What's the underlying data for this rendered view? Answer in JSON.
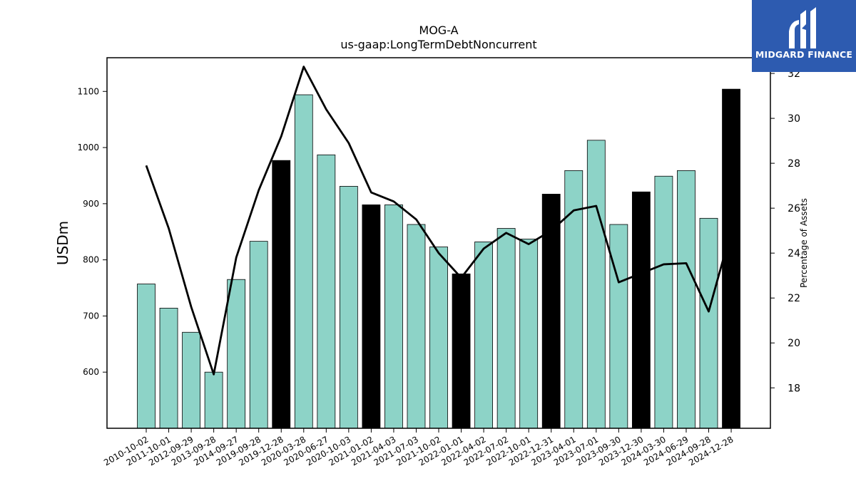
{
  "logo": {
    "text": "MIDGARD FINANCE"
  },
  "chart_data": {
    "type": "bar",
    "title": "MOG-A",
    "subtitle": "us-gaap:LongTermDebtNoncurrent",
    "ylabel": "USDm",
    "ylabel_right": "Percentage of Assets",
    "ylim": [
      500,
      1160
    ],
    "ylim_right": [
      16.2,
      32.7
    ],
    "yticks": [
      600,
      700,
      800,
      900,
      1000,
      1100
    ],
    "yticks_right": [
      18,
      20,
      22,
      24,
      26,
      28,
      30,
      32
    ],
    "categories": [
      "2010-10-02",
      "2011-10-01",
      "2012-09-29",
      "2013-09-28",
      "2014-09-27",
      "2019-09-28",
      "2019-12-28",
      "2020-03-28",
      "2020-06-27",
      "2020-10-03",
      "2021-01-02",
      "2021-04-03",
      "2021-07-03",
      "2021-10-02",
      "2022-01-01",
      "2022-04-02",
      "2022-07-02",
      "2022-10-01",
      "2022-12-31",
      "2023-04-01",
      "2023-07-01",
      "2023-09-30",
      "2023-12-30",
      "2024-03-30",
      "2024-06-29",
      "2024-09-28",
      "2024-12-28"
    ],
    "series": [
      {
        "values": [
          757,
          714,
          671,
          600,
          765,
          833,
          977,
          1094,
          987,
          931,
          898,
          898,
          863,
          823,
          775,
          832,
          856,
          837,
          917,
          959,
          1013,
          863,
          921,
          949,
          959,
          874,
          1104
        ],
        "highlight": [
          false,
          false,
          false,
          false,
          false,
          false,
          true,
          false,
          false,
          false,
          true,
          false,
          false,
          false,
          true,
          false,
          false,
          false,
          true,
          false,
          false,
          false,
          true,
          false,
          false,
          false,
          true
        ]
      },
      {
        "values": [
          27.9,
          25.1,
          21.6,
          18.6,
          23.8,
          26.8,
          29.2,
          32.3,
          30.4,
          28.9,
          26.7,
          26.3,
          25.5,
          24.0,
          22.9,
          24.2,
          24.9,
          24.4,
          25.0,
          25.9,
          26.1,
          22.7,
          23.1,
          23.5,
          23.55,
          21.4,
          25.0
        ]
      }
    ],
    "colors": {
      "bar": "#8dd3c7",
      "bar_highlight": "#000000",
      "line": "#000000",
      "logo_bg": "#2d5bb0"
    }
  }
}
